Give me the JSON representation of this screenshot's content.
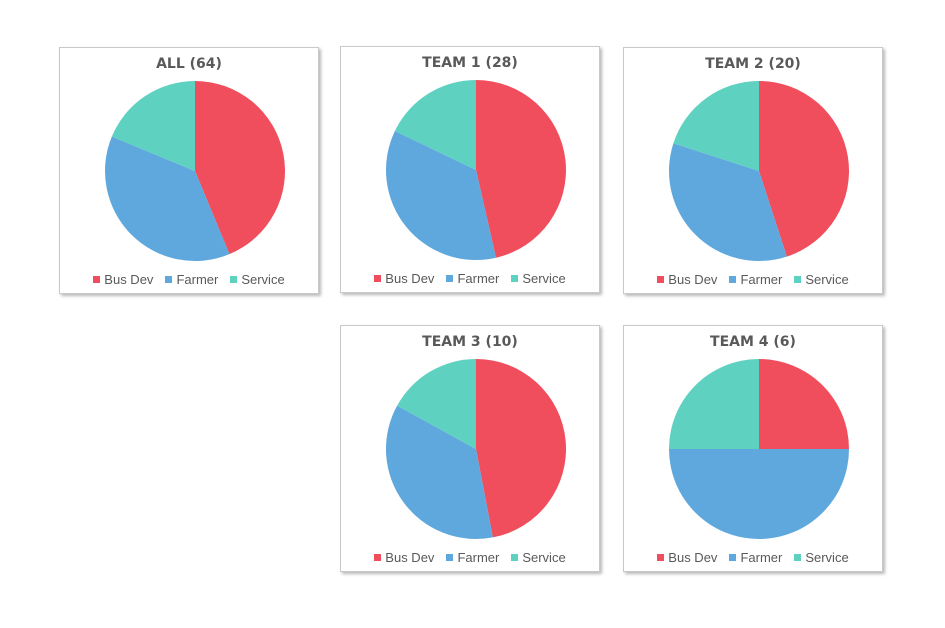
{
  "colors": {
    "bus_dev": "#F04E5C",
    "farmer": "#5FA8DE",
    "service": "#5FD1C1"
  },
  "legend": [
    "Bus Dev",
    "Farmer",
    "Service"
  ],
  "chart_data": [
    {
      "type": "pie",
      "title": "ALL (64)",
      "categories": [
        "Bus Dev",
        "Farmer",
        "Service"
      ],
      "values": [
        28,
        24,
        12
      ]
    },
    {
      "type": "pie",
      "title": "TEAM 1 (28)",
      "categories": [
        "Bus Dev",
        "Farmer",
        "Service"
      ],
      "values": [
        13,
        10,
        5
      ]
    },
    {
      "type": "pie",
      "title": "TEAM 2 (20)",
      "categories": [
        "Bus Dev",
        "Farmer",
        "Service"
      ],
      "values": [
        9,
        7,
        4
      ]
    },
    {
      "type": "pie",
      "title": "TEAM 3 (10)",
      "categories": [
        "Bus Dev",
        "Farmer",
        "Service"
      ],
      "values": [
        4.7,
        3.6,
        1.7
      ]
    },
    {
      "type": "pie",
      "title": "TEAM 4 (6)",
      "categories": [
        "Bus Dev",
        "Farmer",
        "Service"
      ],
      "values": [
        1.5,
        3,
        1.5
      ]
    }
  ]
}
